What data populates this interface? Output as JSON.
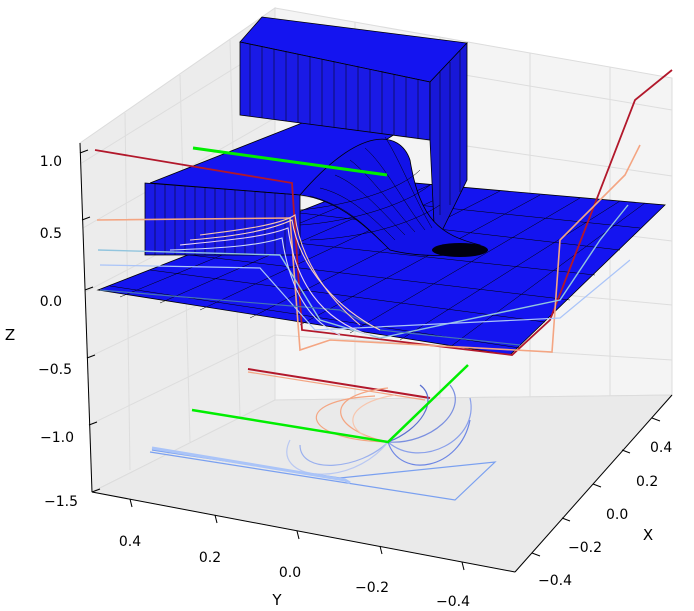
{
  "chart_data": {
    "type": "surface3d",
    "title": "",
    "xlabel": "X",
    "ylabel": "Y",
    "zlabel": "Z",
    "xlim": [
      -0.5,
      0.5
    ],
    "ylim": [
      -0.5,
      0.5
    ],
    "zlim": [
      -1.5,
      1.0
    ],
    "x_ticks": [
      "0.4",
      "0.2",
      "0.0",
      "−0.2",
      "−0.4"
    ],
    "y_ticks": [
      "0.4",
      "0.2",
      "0.0",
      "−0.2",
      "−0.4"
    ],
    "z_ticks": [
      "1.0",
      "0.5",
      "0.0",
      "−0.5",
      "−1.0",
      "−1.5"
    ],
    "grid": true,
    "surface": {
      "description_levels": {
        "high_plateau": 1.0,
        "mid_step": 0.5,
        "floor": 0.0
      },
      "face_color": "#1414f0",
      "edge_color": "#000000"
    },
    "series": [
      {
        "values": [
          1.0,
          1.0,
          0.0,
          0.0
        ],
        "color": "#b2182b"
      },
      {
        "values": [
          0.5,
          0.5,
          0.0,
          0.0
        ],
        "color": "#f4a582"
      },
      {
        "values": [
          0.3,
          0.3,
          0.0,
          0.0
        ],
        "color": "#92c5de"
      },
      {
        "values": [
          0.0,
          0.0,
          0.0,
          0.0
        ],
        "color": "#4575b4"
      }
    ],
    "highlight_color": "#00ee00",
    "colormap": "coolwarm"
  }
}
